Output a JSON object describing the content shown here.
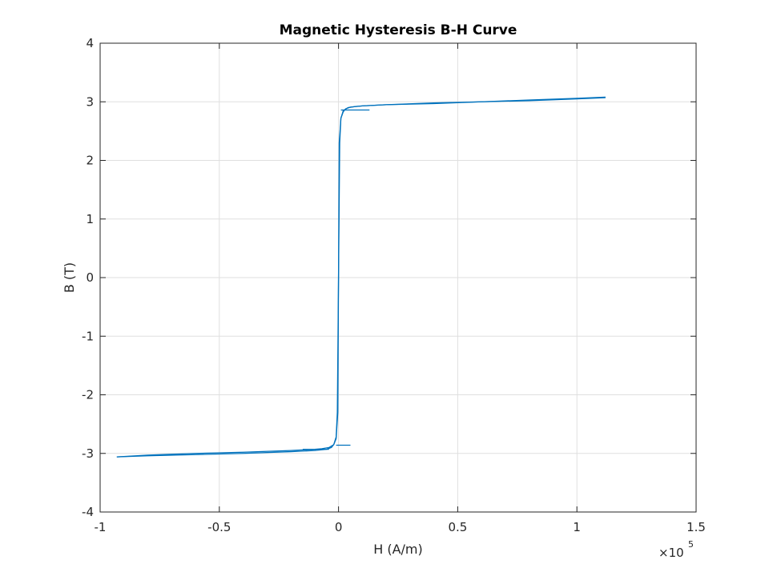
{
  "chart_data": {
    "type": "line",
    "title": "Magnetic Hysteresis B-H Curve",
    "xlabel": "H (A/m)",
    "ylabel": "B (T)",
    "x_exponent_label": "×10",
    "x_exponent_power": "5",
    "x_scale_factor": 100000,
    "xlim": [
      -1,
      1.5
    ],
    "ylim": [
      -4,
      4
    ],
    "xticks": [
      -1,
      -0.5,
      0,
      0.5,
      1,
      1.5
    ],
    "xtick_labels": [
      "-1",
      "-0.5",
      "0",
      "0.5",
      "1",
      "1.5"
    ],
    "yticks": [
      -4,
      -3,
      -2,
      -1,
      0,
      1,
      2,
      3,
      4
    ],
    "ytick_labels": [
      "-4",
      "-3",
      "-2",
      "-1",
      "0",
      "1",
      "2",
      "3",
      "4"
    ],
    "grid": true,
    "line_color": "#0072BD",
    "series": [
      {
        "branch": "ascending",
        "x": [
          -0.93,
          -0.8,
          -0.6,
          -0.4,
          -0.2,
          -0.1,
          -0.05,
          -0.03,
          -0.02,
          -0.01,
          -0.003,
          0.0,
          0.005,
          0.01,
          0.02,
          0.04,
          0.07,
          0.1,
          0.2,
          0.4,
          0.6,
          0.8,
          1.0,
          1.12
        ],
        "y": [
          -3.06,
          -3.04,
          -3.02,
          -3.0,
          -2.97,
          -2.95,
          -2.93,
          -2.9,
          -2.85,
          -2.75,
          -2.3,
          0.0,
          2.3,
          2.72,
          2.85,
          2.9,
          2.92,
          2.93,
          2.95,
          2.98,
          3.0,
          3.03,
          3.06,
          3.08
        ]
      },
      {
        "branch": "descending",
        "x": [
          1.12,
          1.0,
          0.8,
          0.6,
          0.4,
          0.2,
          0.1,
          0.05,
          0.03,
          0.02,
          0.01,
          0.003,
          0.0,
          -0.005,
          -0.01,
          -0.02,
          -0.04,
          -0.07,
          -0.1,
          -0.2,
          -0.4,
          -0.6,
          -0.8,
          -0.93
        ],
        "y": [
          3.07,
          3.05,
          3.02,
          3.0,
          2.97,
          2.95,
          2.93,
          2.91,
          2.88,
          2.83,
          2.72,
          2.3,
          0.0,
          -2.3,
          -2.72,
          -2.85,
          -2.9,
          -2.92,
          -2.93,
          -2.95,
          -2.98,
          -3.0,
          -3.03,
          -3.06
        ]
      },
      {
        "branch": "minor-loop-upper",
        "x": [
          0.01,
          0.13
        ],
        "y": [
          2.86,
          2.86
        ]
      },
      {
        "branch": "minor-loop-lower",
        "x": [
          -0.01,
          0.05
        ],
        "y": [
          -2.86,
          -2.86
        ]
      },
      {
        "branch": "minor-loop-lower-2",
        "x": [
          -0.15,
          -0.04
        ],
        "y": [
          -2.93,
          -2.93
        ]
      }
    ]
  }
}
